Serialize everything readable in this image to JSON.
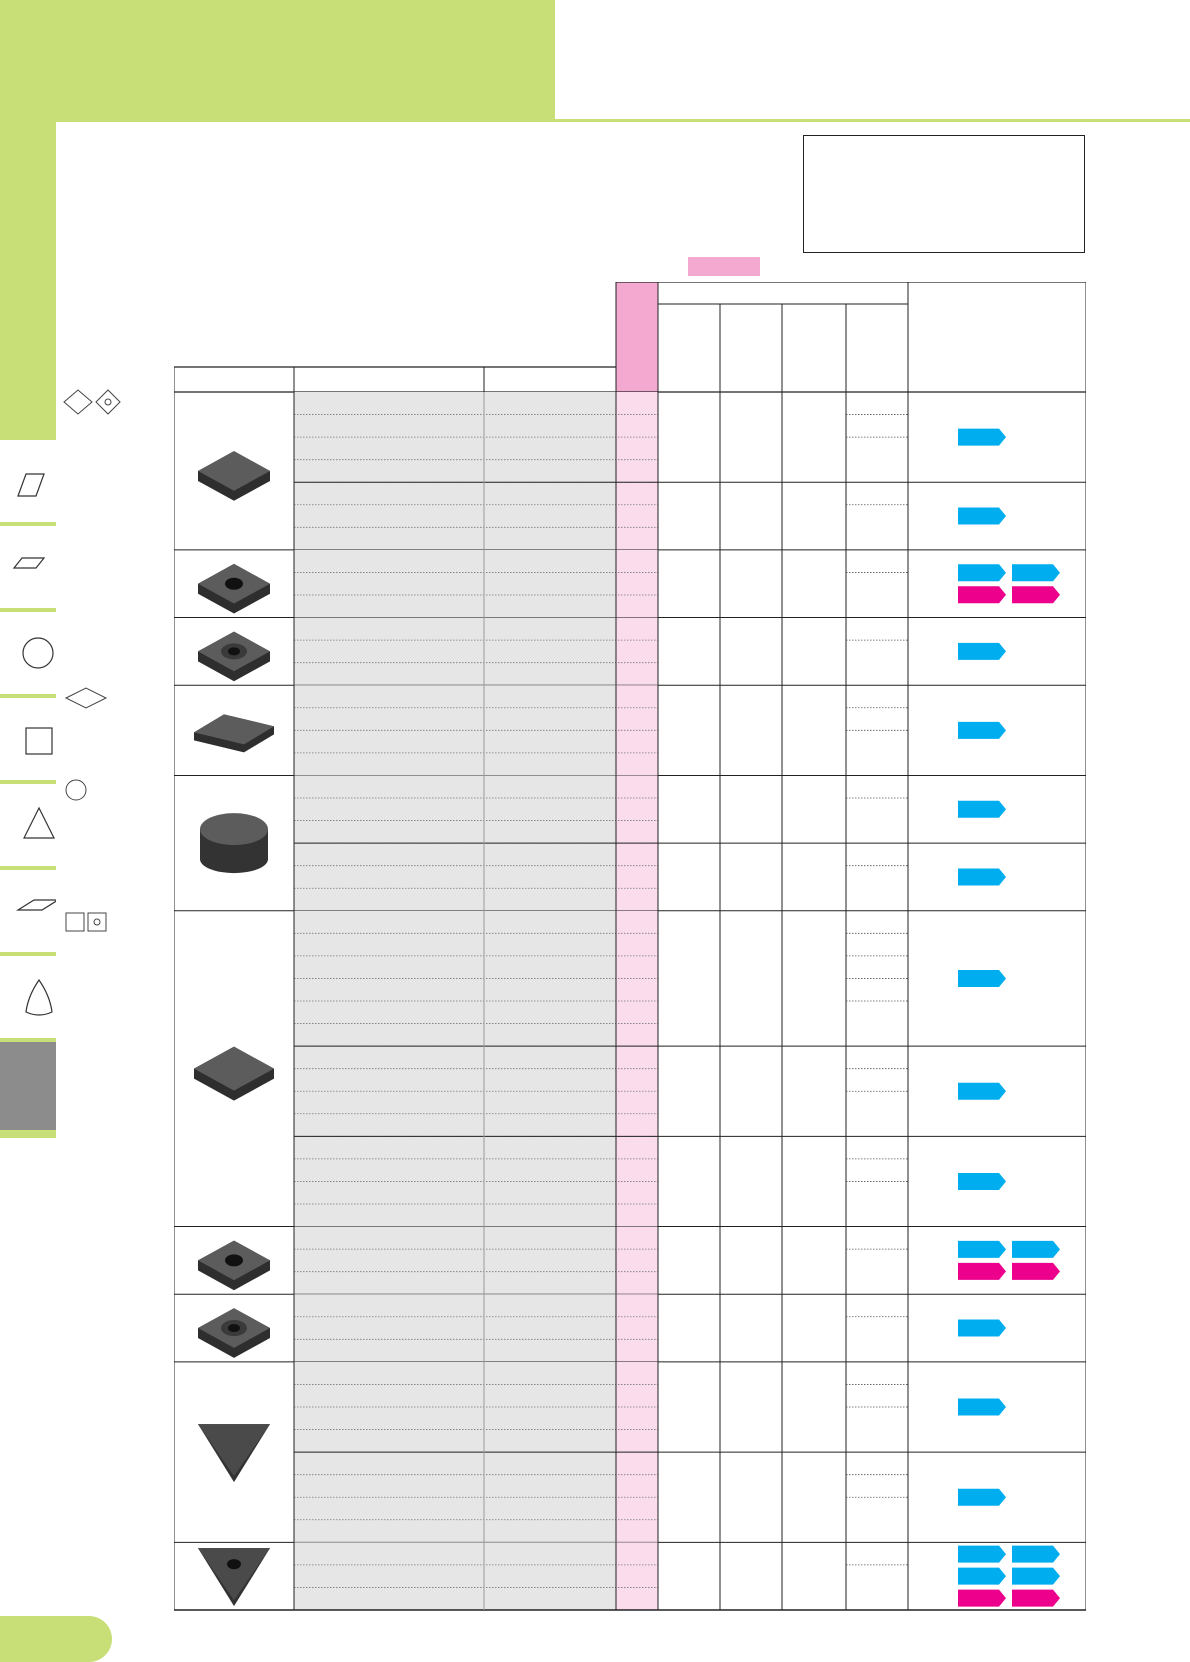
{
  "colors": {
    "green": "#c8df78",
    "pink": "#f4a9d0",
    "blue": "#00aeef",
    "magenta": "#ec008c",
    "grey": "#8c8c8c",
    "row_grey": "#e6e6e6"
  },
  "side_tabs": [
    {
      "icon": "rhombus-80-icon"
    },
    {
      "icon": "parallelogram-icon"
    },
    {
      "icon": "round-icon"
    },
    {
      "icon": "square-icon"
    },
    {
      "icon": "triangle-icon"
    },
    {
      "icon": "parallelogram-55-icon"
    },
    {
      "icon": "trigon-icon"
    },
    {
      "icon": "active-tab"
    }
  ],
  "groups": [
    {
      "shape": "square-insert",
      "rows": 7,
      "subgroups": [
        4,
        3
      ],
      "badges": [
        [
          "b"
        ],
        [
          "b"
        ]
      ]
    },
    {
      "shape": "square-hole-insert",
      "rows": 3,
      "subgroups": [
        3
      ],
      "badges": [
        [
          "b",
          "b",
          "m",
          "m"
        ]
      ]
    },
    {
      "shape": "square-countersink-insert",
      "rows": 3,
      "subgroups": [
        3
      ],
      "badges": [
        [
          "b"
        ]
      ]
    },
    {
      "shape": "rhombus-insert",
      "rows": 4,
      "subgroups": [
        4
      ],
      "badges": [
        [
          "b"
        ]
      ]
    },
    {
      "shape": "round-insert",
      "rows": 6,
      "subgroups": [
        3,
        3
      ],
      "badges": [
        [
          "b"
        ],
        [
          "b"
        ]
      ]
    },
    {
      "shape": "square-insert-large",
      "rows": 14,
      "subgroups": [
        6,
        4,
        4
      ],
      "badges": [
        [
          "b"
        ],
        [
          "b"
        ],
        [
          "b"
        ]
      ]
    },
    {
      "shape": "square-hole-insert",
      "rows": 3,
      "subgroups": [
        3
      ],
      "badges": [
        [
          "b",
          "b",
          "m",
          "m"
        ]
      ]
    },
    {
      "shape": "square-countersink-insert",
      "rows": 3,
      "subgroups": [
        3
      ],
      "badges": [
        [
          "b"
        ]
      ]
    },
    {
      "shape": "triangle-insert",
      "rows": 8,
      "subgroups": [
        4,
        4
      ],
      "badges": [
        [
          "b"
        ],
        [
          "b"
        ]
      ]
    },
    {
      "shape": "triangle-hole-insert",
      "rows": 3,
      "subgroups": [
        3
      ],
      "badges": [
        [
          "b",
          "b",
          "b",
          "b",
          "m",
          "m"
        ]
      ]
    }
  ]
}
